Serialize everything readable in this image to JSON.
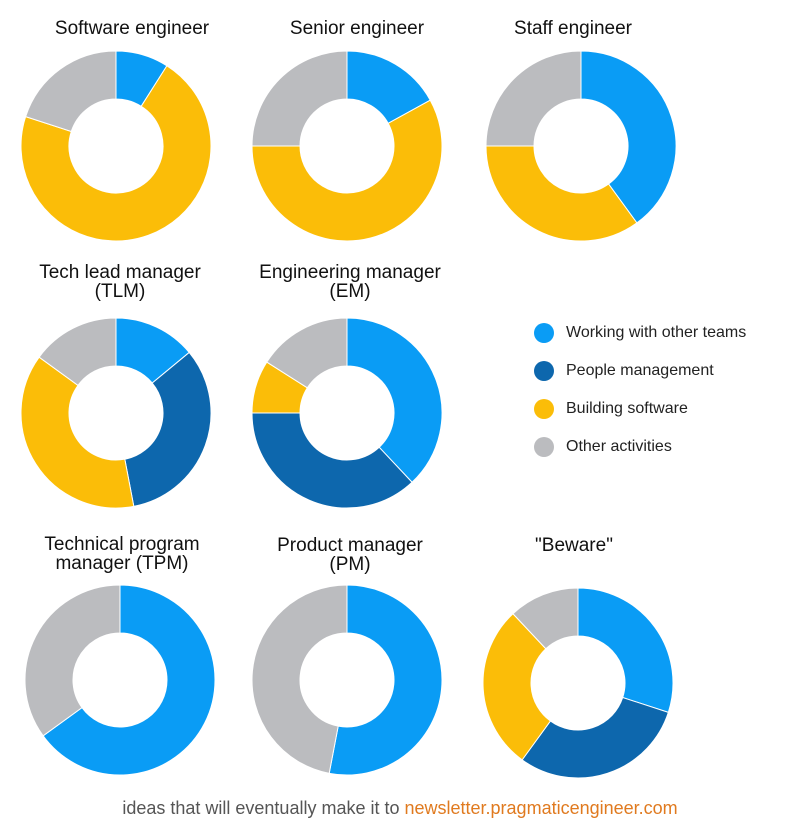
{
  "colors": {
    "working": "#0a9cf5",
    "people": "#0d67ad",
    "building": "#fbbd08",
    "other": "#bbbcbf"
  },
  "legend": [
    {
      "key": "working",
      "label": "Working with other teams"
    },
    {
      "key": "people",
      "label": "People management"
    },
    {
      "key": "building",
      "label": "Building software"
    },
    {
      "key": "other",
      "label": "Other activities"
    }
  ],
  "chart_data": [
    {
      "type": "pie",
      "title": [
        "Software engineer"
      ],
      "slices": [
        {
          "key": "working",
          "value": 9
        },
        {
          "key": "building",
          "value": 71
        },
        {
          "key": "other",
          "value": 20
        }
      ]
    },
    {
      "type": "pie",
      "title": [
        "Senior engineer"
      ],
      "slices": [
        {
          "key": "working",
          "value": 17
        },
        {
          "key": "building",
          "value": 58
        },
        {
          "key": "other",
          "value": 25
        }
      ]
    },
    {
      "type": "pie",
      "title": [
        "Staff  engineer"
      ],
      "slices": [
        {
          "key": "working",
          "value": 40
        },
        {
          "key": "building",
          "value": 35
        },
        {
          "key": "other",
          "value": 25
        }
      ]
    },
    {
      "type": "pie",
      "title": [
        "Tech lead manager",
        "(TLM)"
      ],
      "slices": [
        {
          "key": "working",
          "value": 14
        },
        {
          "key": "people",
          "value": 33
        },
        {
          "key": "building",
          "value": 38
        },
        {
          "key": "other",
          "value": 15
        }
      ]
    },
    {
      "type": "pie",
      "title": [
        "Engineering manager",
        "(EM)"
      ],
      "slices": [
        {
          "key": "working",
          "value": 38
        },
        {
          "key": "people",
          "value": 37
        },
        {
          "key": "building",
          "value": 9
        },
        {
          "key": "other",
          "value": 16
        }
      ]
    },
    {
      "type": "pie",
      "title": [
        "Technical program",
        "manager (TPM)"
      ],
      "slices": [
        {
          "key": "working",
          "value": 65
        },
        {
          "key": "other",
          "value": 35
        }
      ]
    },
    {
      "type": "pie",
      "title": [
        "Product manager",
        "(PM)"
      ],
      "slices": [
        {
          "key": "working",
          "value": 53
        },
        {
          "key": "other",
          "value": 47
        }
      ]
    },
    {
      "type": "pie",
      "title": [
        "\"Beware\""
      ],
      "slices": [
        {
          "key": "working",
          "value": 30
        },
        {
          "key": "people",
          "value": 30
        },
        {
          "key": "building",
          "value": 28
        },
        {
          "key": "other",
          "value": 12
        }
      ]
    }
  ],
  "footer": {
    "text": "ideas that will eventually make it to",
    "link": "newsletter.pragmaticengineer.com"
  }
}
